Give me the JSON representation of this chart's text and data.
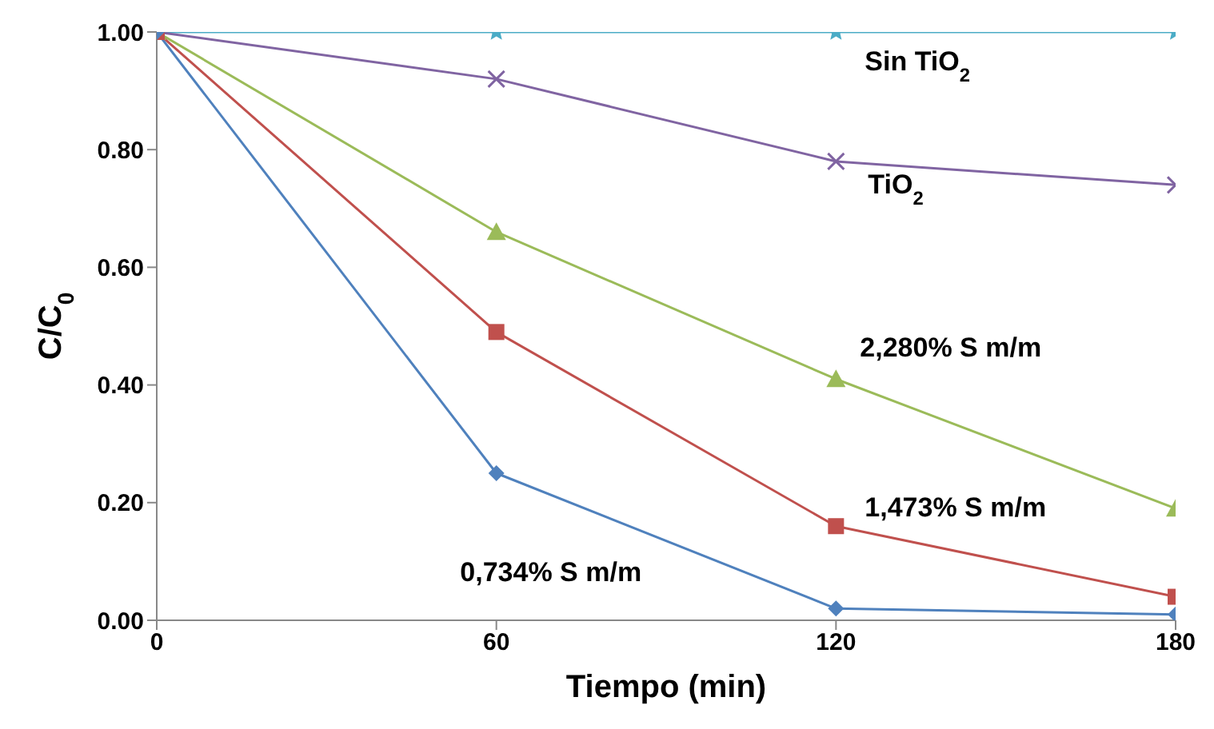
{
  "chart_data": {
    "type": "line",
    "xlabel": "Tiempo (min)",
    "ylabel": "C/C$_{0}$",
    "x": [
      0,
      60,
      120,
      180
    ],
    "xlim": [
      0,
      180
    ],
    "xticks": [
      0,
      60,
      120,
      180
    ],
    "ylim": [
      0,
      1
    ],
    "yticks": [
      {
        "value": 0,
        "label": "0.00"
      },
      {
        "value": 0.2,
        "label": "0.20"
      },
      {
        "value": 0.4,
        "label": "0.40"
      },
      {
        "value": 0.6,
        "label": "0.60"
      },
      {
        "value": 0.8,
        "label": "0.80"
      },
      {
        "value": 1,
        "label": "1.00"
      }
    ],
    "grid": false,
    "legend": false,
    "line_style": "solid",
    "series": [
      {
        "name": "Sin TiO$_{2}$",
        "color": "#4bacc6",
        "marker": "star",
        "values": [
          1,
          1,
          1,
          1
        ]
      },
      {
        "name": "TiO$_{2}$",
        "color": "#8064a2",
        "marker": "cross",
        "values": [
          1,
          0.92,
          0.78,
          0.74
        ]
      },
      {
        "name": "2,280% S m/m",
        "color": "#9bbb59",
        "marker": "triangle",
        "values": [
          1,
          0.66,
          0.41,
          0.19
        ]
      },
      {
        "name": "1,473% S m/m",
        "color": "#c0504d",
        "marker": "square",
        "values": [
          1,
          0.49,
          0.16,
          0.04
        ]
      },
      {
        "name": "0,734% S m/m",
        "color": "#4f81bd",
        "marker": "diamond",
        "values": [
          1,
          0.25,
          0.02,
          0.01
        ]
      }
    ]
  }
}
